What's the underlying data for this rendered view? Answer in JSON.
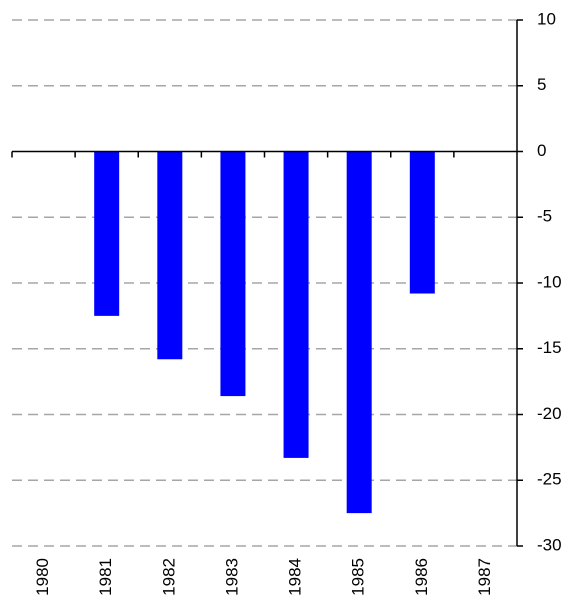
{
  "chart_data": {
    "type": "bar",
    "categories": [
      "1980",
      "1981",
      "1982",
      "1983",
      "1984",
      "1985",
      "1986",
      "1987"
    ],
    "values": [
      null,
      -12.5,
      -15.8,
      -18.6,
      -23.3,
      -27.5,
      -10.8,
      null
    ],
    "color": "#0000ff",
    "ylim": [
      -30,
      10
    ],
    "yticks": [
      -30,
      -25,
      -20,
      -15,
      -10,
      -5,
      0,
      5,
      10
    ],
    "grid": true
  }
}
